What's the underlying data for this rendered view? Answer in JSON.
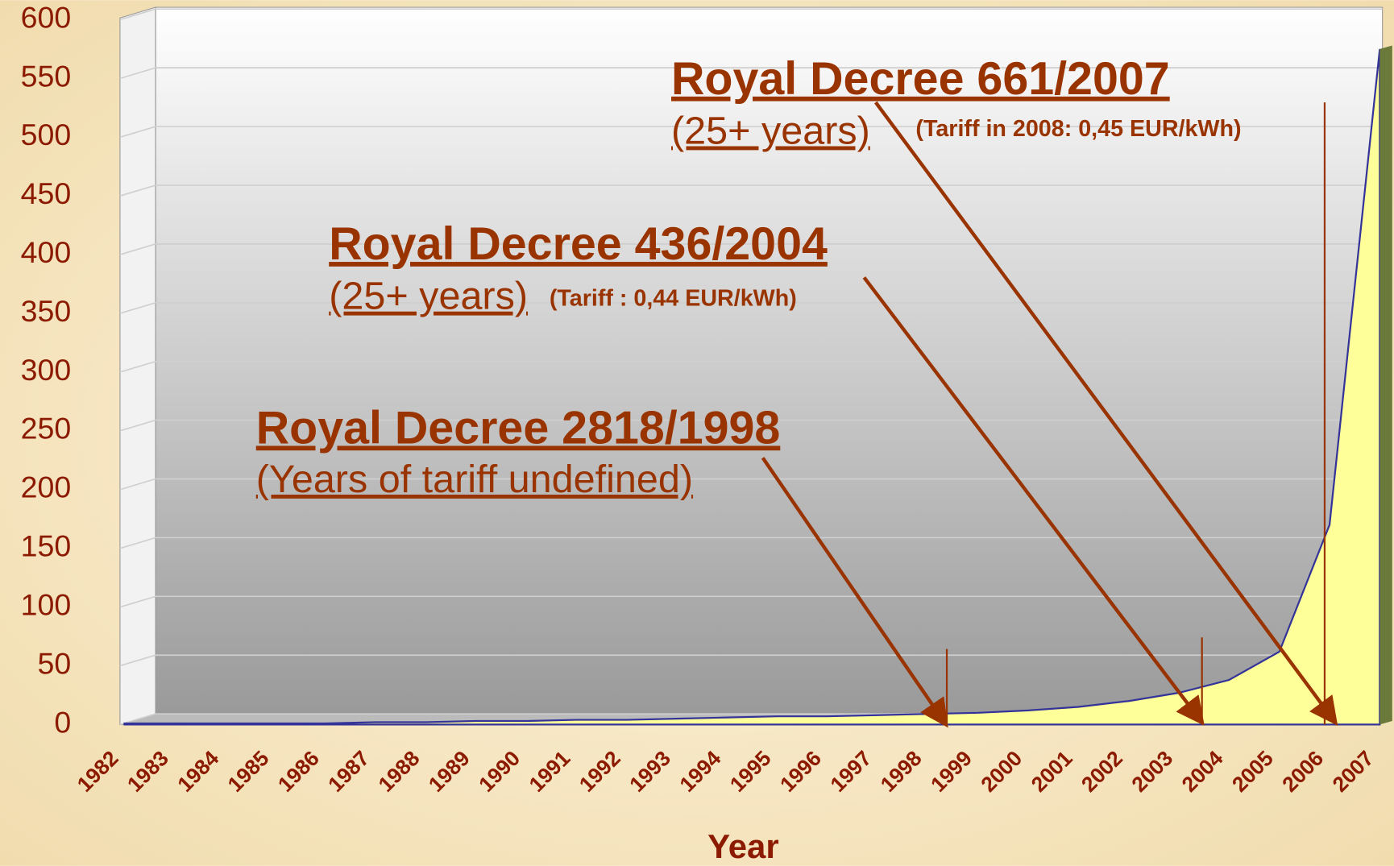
{
  "chart_data": {
    "type": "area",
    "x_label": "Year",
    "categories": [
      "1982",
      "1983",
      "1984",
      "1985",
      "1986",
      "1987",
      "1988",
      "1989",
      "1990",
      "1991",
      "1992",
      "1993",
      "1994",
      "1995",
      "1996",
      "1997",
      "1998",
      "1999",
      "2000",
      "2001",
      "2002",
      "2003",
      "2004",
      "2005",
      "2006",
      "2007"
    ],
    "values": [
      1,
      1,
      1,
      1,
      1,
      2,
      2,
      3,
      3,
      4,
      4,
      5,
      6,
      7,
      7,
      8,
      9,
      10,
      12,
      15,
      20,
      27,
      38,
      62,
      170,
      575
    ],
    "color": "#ffff99",
    "line_color": "#333399",
    "ylim": [
      0,
      600
    ],
    "yticks": [
      0,
      50,
      100,
      150,
      200,
      250,
      300,
      350,
      400,
      450,
      500,
      550,
      600
    ],
    "grid": true,
    "annotations": [
      {
        "title": "Royal Decree 661/2007",
        "subtitle": "(25+ years)",
        "note": "(Tariff  in 2008: 0,45 EUR/kWh)"
      },
      {
        "title": "Royal Decree 436/2004",
        "subtitle": "(25+ years)",
        "note": "(Tariff : 0,44 EUR/kWh)"
      },
      {
        "title": "Royal Decree 2818/1998",
        "subtitle": "(Years of tariff undefined)"
      }
    ]
  }
}
